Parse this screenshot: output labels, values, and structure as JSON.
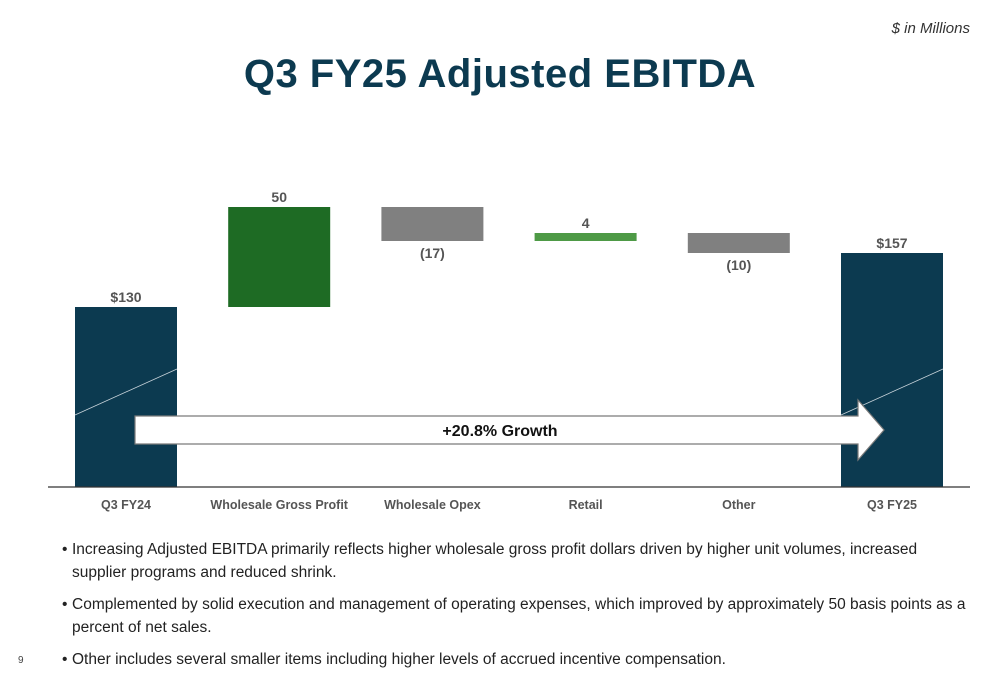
{
  "header": {
    "units": "$ in Millions",
    "title": "Q3 FY25 Adjusted EBITDA"
  },
  "chart_data": {
    "type": "bar",
    "variant": "waterfall",
    "title": "Q3 FY25 Adjusted EBITDA",
    "units": "$ in Millions",
    "categories": [
      "Q3 FY24",
      "Wholesale Gross Profit",
      "Wholesale Opex",
      "Retail",
      "Other",
      "Q3 FY25"
    ],
    "values": [
      130,
      50,
      -17,
      4,
      -10,
      157
    ],
    "kinds": [
      "total",
      "increase",
      "decrease",
      "increase",
      "decrease",
      "total"
    ],
    "data_labels": [
      "$130",
      "50",
      "(17)",
      "4",
      "(10)",
      "$157"
    ],
    "xlabel": "",
    "ylabel": "",
    "ylim": [
      40,
      180
    ],
    "grid": false,
    "legend": "none",
    "annotation": "+20.8% Growth",
    "colors": {
      "total": "#0c3a50",
      "increase_large": "#1e6b24",
      "increase_small": "#4e9a46",
      "decrease": "#808080",
      "axis": "#333333",
      "label": "#555555"
    }
  },
  "bullets": [
    "Increasing Adjusted EBITDA primarily reflects higher wholesale gross profit dollars driven by higher unit volumes, increased supplier programs and reduced shrink.",
    "Complemented by solid execution and management of operating expenses, which improved by approximately 50 basis points as a percent of net sales.",
    "Other includes several smaller items including higher levels of accrued incentive compensation."
  ],
  "page_number": "9"
}
